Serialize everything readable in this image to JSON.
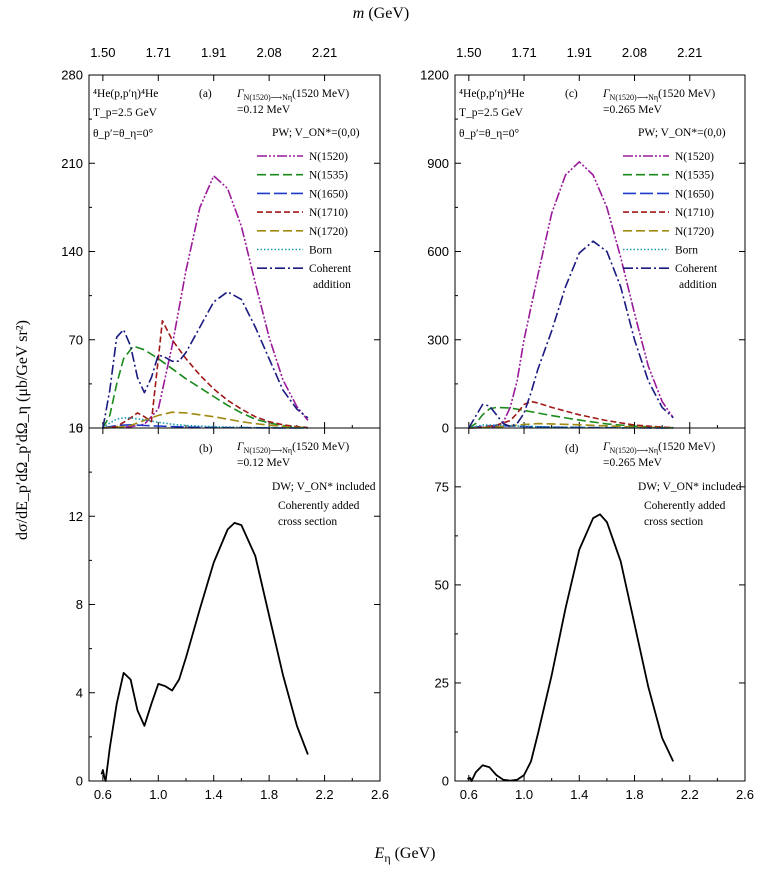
{
  "top_axis": {
    "label_main": "m",
    "label_unit": " (GeV)",
    "ticks": [
      {
        "pos": 0.6,
        "label": "1.50"
      },
      {
        "pos": 1.0,
        "label": "1.71"
      },
      {
        "pos": 1.4,
        "label": "1.91"
      },
      {
        "pos": 1.8,
        "label": "2.08"
      },
      {
        "pos": 2.2,
        "label": "2.21"
      }
    ]
  },
  "x_axis": {
    "label_main": "E",
    "label_sub": "η",
    "label_unit": " (GeV)",
    "ticks": [
      0.6,
      1.0,
      1.4,
      1.8,
      2.2,
      2.6
    ],
    "tick_labels": [
      "0.6",
      "1.0",
      "1.4",
      "1.8",
      "2.2",
      "2.6"
    ],
    "range": [
      0.5,
      2.6
    ]
  },
  "y_axis_label": "dσ/dE_p′dΩ_p′dΩ_η (μb/GeV sr²)",
  "common": {
    "reaction": "⁴He(p,p′η)⁴He",
    "tp": "T_p=2.5 GeV",
    "theta": "θ_p′=θ_η=0°",
    "gamma_prefix": "Γ",
    "gamma_sub": "N(1520)⟶Nη",
    "gamma_suffix": "(1520 MeV)",
    "pw_label": "PW;  V_ON*=(0,0)",
    "dw_label": "DW;  V_ON* included",
    "coh_line1": "Coherently added",
    "coh_line2": "cross section"
  },
  "legend": [
    {
      "key": "N1520",
      "label": "N(1520)",
      "color": "#9a1a9a",
      "dash": "10,2,2,2,2,2"
    },
    {
      "key": "N1535",
      "label": "N(1535)",
      "color": "#1a8a1a",
      "dash": "9,4"
    },
    {
      "key": "N1650",
      "label": "N(1650)",
      "color": "#1e3acb",
      "dash": "13,4"
    },
    {
      "key": "N1710",
      "label": "N(1710)",
      "color": "#a01818",
      "dash": "6,3"
    },
    {
      "key": "N1720",
      "label": "N(1720)",
      "color": "#a08a10",
      "dash": "9,4"
    },
    {
      "key": "Born",
      "label": "Born",
      "color": "#1a9ab0",
      "dash": "1.5,2"
    },
    {
      "key": "Coherent",
      "label": "Coherent",
      "label2": "addition",
      "color": "#1a1a80",
      "dash": "10,3,2,3"
    }
  ],
  "chart_data": [
    {
      "panel": "(a)",
      "type": "line",
      "gamma_value": "=0.12 MeV",
      "ylim": [
        0,
        280
      ],
      "yticks": [
        0,
        70,
        140,
        210,
        280
      ],
      "series": [
        {
          "name": "N(1520)",
          "x": [
            0.62,
            0.7,
            0.8,
            0.9,
            1.0,
            1.1,
            1.2,
            1.3,
            1.4,
            1.5,
            1.6,
            1.7,
            1.8,
            1.9,
            2.0,
            2.08
          ],
          "y": [
            0,
            0.5,
            1,
            3,
            15,
            65,
            125,
            175,
            200,
            190,
            160,
            115,
            72,
            38,
            17,
            6
          ]
        },
        {
          "name": "N(1535)",
          "x": [
            0.6,
            0.65,
            0.7,
            0.75,
            0.82,
            0.9,
            1.0,
            1.1,
            1.2,
            1.3,
            1.4,
            1.5,
            1.6,
            1.7,
            1.8,
            1.9,
            2.0,
            2.08
          ],
          "y": [
            0,
            10,
            35,
            55,
            65,
            62,
            55,
            47,
            39,
            32,
            25,
            18,
            12,
            7,
            4,
            2,
            0.6,
            0.2
          ]
        },
        {
          "name": "N(1650)",
          "x": [
            0.6,
            0.7,
            0.8,
            0.9,
            1.0,
            1.2,
            1.4,
            1.6,
            1.8,
            2.0,
            2.08
          ],
          "y": [
            0,
            2,
            2.5,
            2,
            1.5,
            0.8,
            0.4,
            0.2,
            0.1,
            0,
            0
          ]
        },
        {
          "name": "N(1710)",
          "x": [
            0.6,
            0.7,
            0.8,
            0.85,
            0.9,
            0.95,
            1.0,
            1.03,
            1.1,
            1.2,
            1.3,
            1.4,
            1.5,
            1.6,
            1.7,
            1.8,
            1.9,
            2.0,
            2.08
          ],
          "y": [
            0,
            1,
            8,
            12,
            9,
            5,
            55,
            85,
            70,
            55,
            42,
            31,
            22,
            15,
            9,
            5,
            2.5,
            1,
            0.4
          ]
        },
        {
          "name": "N(1720)",
          "x": [
            0.6,
            0.7,
            0.8,
            0.9,
            1.0,
            1.1,
            1.2,
            1.3,
            1.4,
            1.5,
            1.6,
            1.7,
            1.8,
            1.9,
            2.0,
            2.08
          ],
          "y": [
            0,
            0.5,
            2,
            6,
            10,
            12.5,
            12,
            10.5,
            9,
            7,
            5,
            3.5,
            2.2,
            1.2,
            0.5,
            0.2
          ]
        },
        {
          "name": "Born",
          "x": [
            0.6,
            0.65,
            0.7,
            0.75,
            0.8,
            0.9,
            1.0,
            1.1,
            1.2,
            1.4,
            1.6,
            1.8,
            2.0,
            2.08
          ],
          "y": [
            0,
            4,
            7,
            8,
            8,
            6.5,
            4.5,
            3,
            2,
            1,
            0.5,
            0.2,
            0.1,
            0
          ]
        },
        {
          "name": "Coherent",
          "x": [
            0.6,
            0.65,
            0.7,
            0.75,
            0.8,
            0.85,
            0.9,
            0.95,
            1.0,
            1.05,
            1.1,
            1.15,
            1.2,
            1.3,
            1.4,
            1.5,
            1.6,
            1.7,
            1.8,
            1.9,
            2.0,
            2.08
          ],
          "y": [
            0,
            30,
            72,
            78,
            65,
            40,
            28,
            40,
            58,
            56,
            53,
            53,
            60,
            80,
            100,
            108,
            102,
            80,
            55,
            30,
            15,
            8
          ]
        }
      ]
    },
    {
      "panel": "(b)",
      "type": "line",
      "gamma_value": "=0.12 MeV",
      "ylim": [
        0,
        16
      ],
      "yticks": [
        0,
        4,
        8,
        12,
        16
      ],
      "series": [
        {
          "name": "Coherently added (DW)",
          "x": [
            0.59,
            0.6,
            0.61,
            0.62,
            0.65,
            0.7,
            0.75,
            0.8,
            0.85,
            0.9,
            0.95,
            1.0,
            1.05,
            1.1,
            1.15,
            1.2,
            1.3,
            1.4,
            1.5,
            1.55,
            1.6,
            1.7,
            1.8,
            1.9,
            2.0,
            2.08
          ],
          "y": [
            0.3,
            0.5,
            0.2,
            0.0,
            1.5,
            3.5,
            4.9,
            4.6,
            3.2,
            2.5,
            3.5,
            4.4,
            4.3,
            4.1,
            4.6,
            5.6,
            7.8,
            9.9,
            11.4,
            11.7,
            11.6,
            10.2,
            7.5,
            4.8,
            2.5,
            1.2
          ]
        }
      ]
    },
    {
      "panel": "(c)",
      "type": "line",
      "gamma_value": "=0.265 MeV",
      "ylim": [
        0,
        1200
      ],
      "yticks": [
        0,
        300,
        600,
        900,
        1200
      ],
      "series": [
        {
          "name": "N(1520)",
          "x": [
            0.62,
            0.7,
            0.8,
            0.85,
            0.9,
            0.95,
            1.0,
            1.1,
            1.2,
            1.3,
            1.4,
            1.5,
            1.6,
            1.7,
            1.8,
            1.9,
            2.0,
            2.08
          ],
          "y": [
            0,
            1,
            5,
            20,
            70,
            160,
            300,
            520,
            730,
            860,
            905,
            860,
            750,
            580,
            390,
            210,
            90,
            35
          ]
        },
        {
          "name": "N(1535)",
          "x": [
            0.6,
            0.65,
            0.7,
            0.75,
            0.8,
            0.9,
            1.0,
            1.2,
            1.4,
            1.6,
            1.8,
            2.0,
            2.08
          ],
          "y": [
            0,
            15,
            45,
            65,
            70,
            68,
            60,
            42,
            27,
            14,
            6,
            2,
            1
          ]
        },
        {
          "name": "N(1650)",
          "x": [
            0.6,
            0.7,
            0.8,
            1.0,
            1.2,
            1.6,
            2.08
          ],
          "y": [
            0,
            6,
            8,
            5,
            3,
            1,
            0
          ]
        },
        {
          "name": "N(1710)",
          "x": [
            0.6,
            0.7,
            0.8,
            0.9,
            0.95,
            1.0,
            1.05,
            1.1,
            1.2,
            1.4,
            1.6,
            1.8,
            2.0,
            2.08
          ],
          "y": [
            0,
            2,
            10,
            25,
            50,
            80,
            90,
            85,
            70,
            45,
            25,
            10,
            3,
            1
          ]
        },
        {
          "name": "N(1720)",
          "x": [
            0.6,
            0.8,
            1.0,
            1.1,
            1.2,
            1.4,
            1.6,
            1.8,
            2.0,
            2.08
          ],
          "y": [
            0,
            3,
            12,
            15,
            14,
            11,
            7,
            3,
            1,
            0.5
          ]
        },
        {
          "name": "Born",
          "x": [
            0.6,
            0.7,
            0.8,
            1.0,
            1.2,
            1.6,
            2.08
          ],
          "y": [
            0,
            10,
            10,
            6,
            3,
            1,
            0
          ]
        },
        {
          "name": "Coherent",
          "x": [
            0.6,
            0.65,
            0.7,
            0.75,
            0.8,
            0.85,
            0.9,
            0.95,
            1.0,
            1.05,
            1.1,
            1.2,
            1.3,
            1.4,
            1.5,
            1.6,
            1.7,
            1.8,
            1.9,
            2.0,
            2.08
          ],
          "y": [
            0,
            40,
            80,
            75,
            45,
            15,
            5,
            15,
            50,
            120,
            200,
            330,
            480,
            595,
            635,
            600,
            480,
            300,
            160,
            70,
            35
          ]
        }
      ]
    },
    {
      "panel": "(d)",
      "type": "line",
      "gamma_value": "=0.265 MeV",
      "ylim": [
        0,
        90
      ],
      "yticks": [
        0,
        25,
        50,
        75
      ],
      "series": [
        {
          "name": "Coherently added (DW)",
          "x": [
            0.59,
            0.61,
            0.62,
            0.65,
            0.7,
            0.75,
            0.8,
            0.85,
            0.9,
            0.95,
            1.0,
            1.05,
            1.1,
            1.2,
            1.3,
            1.4,
            1.5,
            1.55,
            1.6,
            1.7,
            1.8,
            1.9,
            2.0,
            2.08
          ],
          "y": [
            0.5,
            0.8,
            0,
            2.2,
            4.0,
            3.5,
            1.5,
            0.3,
            0.1,
            0.3,
            1.5,
            5,
            12,
            27,
            44,
            59,
            67,
            68,
            66,
            56,
            40,
            24,
            11,
            5
          ]
        }
      ]
    }
  ]
}
